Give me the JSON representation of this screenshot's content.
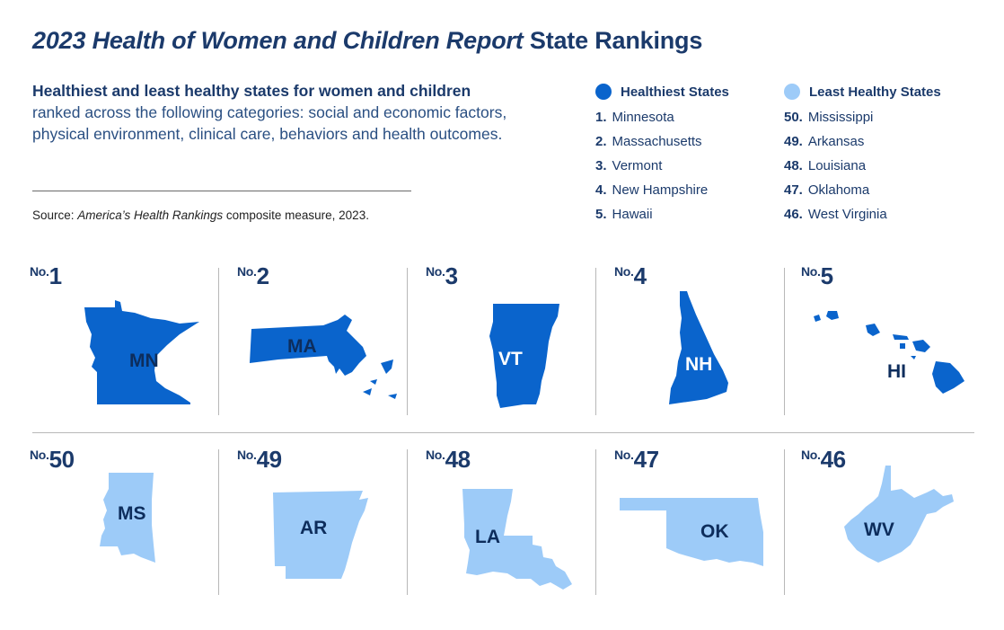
{
  "title": {
    "italic_part": "2023 Health of Women and Children Report",
    "rest": " State Rankings"
  },
  "intro": {
    "lead": "Healthiest and least healthy states for women and children",
    "body": "ranked across the following categories: social and economic factors, physical environment, clinical care, behaviors and health outcomes."
  },
  "source": {
    "prefix": "Source: ",
    "italic_part": "America’s Health Rankings",
    "suffix": " composite measure, 2023."
  },
  "legend": {
    "healthiest": {
      "heading": "Healthiest States",
      "color": "#0a64cc",
      "items": [
        {
          "rank": "1.",
          "name": "Minnesota"
        },
        {
          "rank": "2.",
          "name": "Massachusetts"
        },
        {
          "rank": "3.",
          "name": "Vermont"
        },
        {
          "rank": "4.",
          "name": "New Hampshire"
        },
        {
          "rank": "5.",
          "name": "Hawaii"
        }
      ]
    },
    "least": {
      "heading": "Least Healthy States",
      "color": "#9dcbf8",
      "items": [
        {
          "rank": "50.",
          "name": "Mississippi"
        },
        {
          "rank": "49.",
          "name": "Arkansas"
        },
        {
          "rank": "48.",
          "name": "Louisiana"
        },
        {
          "rank": "47.",
          "name": "Oklahoma"
        },
        {
          "rank": "46.",
          "name": "West Virginia"
        }
      ]
    }
  },
  "rank_prefix": "No.",
  "panels_top": [
    {
      "rank": "1",
      "abbr": "MN",
      "shape": "minnesota-map"
    },
    {
      "rank": "2",
      "abbr": "MA",
      "shape": "massachusetts-map"
    },
    {
      "rank": "3",
      "abbr": "VT",
      "shape": "vermont-map"
    },
    {
      "rank": "4",
      "abbr": "NH",
      "shape": "new-hampshire-map"
    },
    {
      "rank": "5",
      "abbr": "HI",
      "shape": "hawaii-map"
    }
  ],
  "panels_bottom": [
    {
      "rank": "50",
      "abbr": "MS",
      "shape": "mississippi-map"
    },
    {
      "rank": "49",
      "abbr": "AR",
      "shape": "arkansas-map"
    },
    {
      "rank": "48",
      "abbr": "LA",
      "shape": "louisiana-map"
    },
    {
      "rank": "47",
      "abbr": "OK",
      "shape": "oklahoma-map"
    },
    {
      "rank": "46",
      "abbr": "WV",
      "shape": "west-virginia-map"
    }
  ]
}
